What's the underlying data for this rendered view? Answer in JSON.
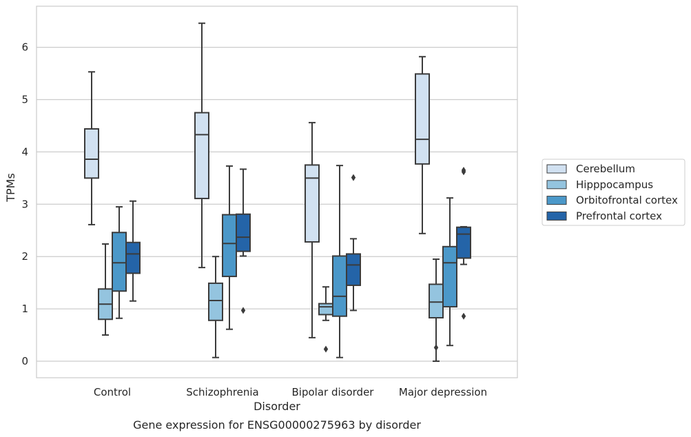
{
  "chart_data": {
    "type": "box",
    "caption": "Gene expression for ENSG00000275963 by disorder",
    "xlabel": "Disorder",
    "ylabel": "TPMs",
    "ylim": [
      -0.3,
      6.8
    ],
    "yticks": [
      0,
      1,
      2,
      3,
      4,
      5,
      6
    ],
    "grid": "horizontal",
    "legend_position": "right",
    "categories": [
      "Control",
      "Schizophrenia",
      "Bipolar disorder",
      "Major depression"
    ],
    "series": [
      {
        "name": "Cerebellum",
        "color": "#d1e1f1",
        "boxes": [
          {
            "whislo": 2.61,
            "q1": 3.5,
            "med": 3.86,
            "q3": 4.44,
            "whishi": 5.53,
            "fliers": []
          },
          {
            "whislo": 1.79,
            "q1": 3.11,
            "med": 4.33,
            "q3": 4.75,
            "whishi": 6.46,
            "fliers": []
          },
          {
            "whislo": 0.45,
            "q1": 2.28,
            "med": 3.5,
            "q3": 3.75,
            "whishi": 4.56,
            "fliers": []
          },
          {
            "whislo": 2.44,
            "q1": 3.77,
            "med": 4.24,
            "q3": 5.49,
            "whishi": 5.82,
            "fliers": []
          }
        ]
      },
      {
        "name": "Hipppocampus",
        "color": "#94c4df",
        "boxes": [
          {
            "whislo": 0.5,
            "q1": 0.8,
            "med": 1.09,
            "q3": 1.38,
            "whishi": 2.24,
            "fliers": []
          },
          {
            "whislo": 0.07,
            "q1": 0.78,
            "med": 1.16,
            "q3": 1.49,
            "whishi": 2.0,
            "fliers": []
          },
          {
            "whislo": 0.78,
            "q1": 0.89,
            "med": 1.04,
            "q3": 1.1,
            "whishi": 1.42,
            "fliers": [
              0.23
            ]
          },
          {
            "whislo": 0.0,
            "q1": 0.83,
            "med": 1.13,
            "q3": 1.47,
            "whishi": 1.95,
            "fliers": [
              0.26
            ]
          }
        ]
      },
      {
        "name": "Orbitofrontal cortex",
        "color": "#4b98c9",
        "boxes": [
          {
            "whislo": 0.82,
            "q1": 1.34,
            "med": 1.88,
            "q3": 2.46,
            "whishi": 2.95,
            "fliers": []
          },
          {
            "whislo": 0.61,
            "q1": 1.62,
            "med": 2.25,
            "q3": 2.8,
            "whishi": 3.73,
            "fliers": []
          },
          {
            "whislo": 0.07,
            "q1": 0.86,
            "med": 1.24,
            "q3": 2.01,
            "whishi": 3.74,
            "fliers": []
          },
          {
            "whislo": 0.3,
            "q1": 1.04,
            "med": 1.88,
            "q3": 2.19,
            "whishi": 3.12,
            "fliers": []
          }
        ]
      },
      {
        "name": "Prefrontal cortex",
        "color": "#2464a8",
        "boxes": [
          {
            "whislo": 1.15,
            "q1": 1.68,
            "med": 2.05,
            "q3": 2.27,
            "whishi": 3.06,
            "fliers": []
          },
          {
            "whislo": 2.01,
            "q1": 2.1,
            "med": 2.37,
            "q3": 2.81,
            "whishi": 3.67,
            "fliers": [
              0.97
            ]
          },
          {
            "whislo": 0.97,
            "q1": 1.45,
            "med": 1.84,
            "q3": 2.05,
            "whishi": 2.34,
            "fliers": [
              3.51
            ]
          },
          {
            "whislo": 1.85,
            "q1": 1.97,
            "med": 2.43,
            "q3": 2.56,
            "whishi": 2.57,
            "fliers": [
              0.86,
              3.62,
              3.65
            ]
          }
        ]
      }
    ]
  }
}
